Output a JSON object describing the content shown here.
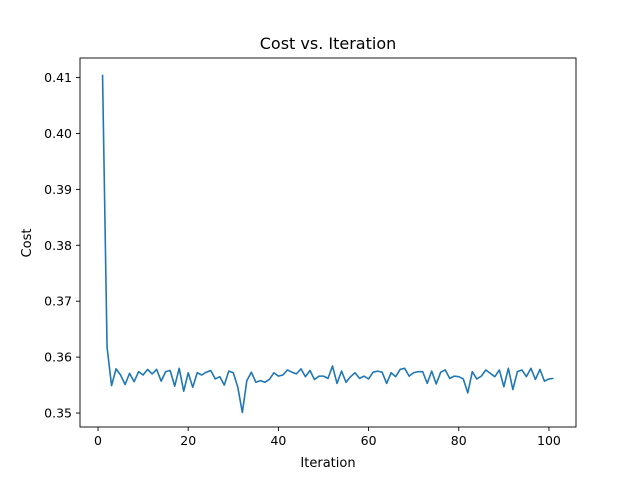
{
  "chart_data": {
    "type": "line",
    "title": "Cost vs. Iteration",
    "xlabel": "Iteration",
    "ylabel": "Cost",
    "xlim": [
      -4.0,
      106.0
    ],
    "ylim": [
      0.3475,
      0.4135
    ],
    "xticks": [
      0,
      20,
      40,
      60,
      80,
      100
    ],
    "yticks": [
      0.35,
      0.36,
      0.37,
      0.38,
      0.39,
      0.4,
      0.41
    ],
    "ytick_labels": [
      "0.35",
      "0.36",
      "0.37",
      "0.38",
      "0.39",
      "0.40",
      "0.41"
    ],
    "grid": false,
    "series_color": "#1f77b4",
    "series": [
      {
        "x": [
          1,
          2,
          3,
          4,
          5,
          6,
          7,
          8,
          9,
          10,
          11,
          12,
          13,
          14,
          15,
          16,
          17,
          18,
          19,
          20,
          21,
          22,
          23,
          24,
          25,
          26,
          27,
          28,
          29,
          30,
          31,
          32,
          33,
          34,
          35,
          36,
          37,
          38,
          39,
          40,
          41,
          42,
          43,
          44,
          45,
          46,
          47,
          48,
          49,
          50,
          51,
          52,
          53,
          54,
          55,
          56,
          57,
          58,
          59,
          60,
          61,
          62,
          63,
          64,
          65,
          66,
          67,
          68,
          69,
          70,
          71,
          72,
          73,
          74,
          75,
          76,
          77,
          78,
          79,
          80,
          81,
          82,
          83,
          84,
          85,
          86,
          87,
          88,
          89,
          90,
          91,
          92,
          93,
          94,
          95,
          96,
          97,
          98,
          99,
          100,
          101
        ],
        "values": [
          0.4105,
          0.3618,
          0.3549,
          0.3579,
          0.3568,
          0.3551,
          0.3571,
          0.3556,
          0.3574,
          0.3568,
          0.3578,
          0.357,
          0.3578,
          0.3557,
          0.3574,
          0.3576,
          0.3548,
          0.358,
          0.3539,
          0.3572,
          0.3546,
          0.3572,
          0.3568,
          0.3573,
          0.3576,
          0.3561,
          0.3565,
          0.355,
          0.3575,
          0.3572,
          0.3546,
          0.3501,
          0.3558,
          0.3573,
          0.3555,
          0.3558,
          0.3555,
          0.356,
          0.3572,
          0.3566,
          0.3568,
          0.3577,
          0.3573,
          0.357,
          0.3579,
          0.3565,
          0.3576,
          0.356,
          0.3566,
          0.3566,
          0.3562,
          0.3584,
          0.3553,
          0.3575,
          0.3555,
          0.3565,
          0.3572,
          0.3562,
          0.3566,
          0.3561,
          0.3573,
          0.3575,
          0.3573,
          0.3553,
          0.3572,
          0.3565,
          0.3578,
          0.358,
          0.3566,
          0.3572,
          0.3574,
          0.3574,
          0.3553,
          0.3575,
          0.3552,
          0.3573,
          0.3577,
          0.3562,
          0.3566,
          0.3565,
          0.3561,
          0.3536,
          0.3574,
          0.3561,
          0.3566,
          0.3577,
          0.3571,
          0.3565,
          0.3577,
          0.3547,
          0.358,
          0.3542,
          0.3574,
          0.3577,
          0.3565,
          0.358,
          0.356,
          0.3578,
          0.3557,
          0.3561,
          0.3562
        ]
      }
    ]
  }
}
